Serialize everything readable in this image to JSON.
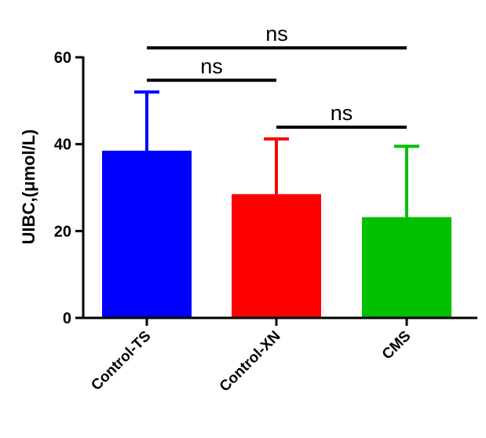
{
  "chart_data": {
    "type": "bar",
    "title": "",
    "xlabel": "",
    "ylabel": "UIBC,(μmol/L)",
    "ylim": [
      0,
      60
    ],
    "yticks": [
      0,
      20,
      40,
      60
    ],
    "grid": false,
    "categories": [
      "Control-TS",
      "Control-XN",
      "CMS"
    ],
    "values": [
      38.5,
      28.5,
      23.2
    ],
    "error_upper": [
      52,
      41.2,
      39.5
    ],
    "colors": [
      "#0000ff",
      "#ff0000",
      "#00c000"
    ],
    "significance": [
      {
        "from": 0,
        "to": 1,
        "label": "ns",
        "level": "low"
      },
      {
        "from": 1,
        "to": 2,
        "label": "ns",
        "level": "low"
      },
      {
        "from": 0,
        "to": 2,
        "label": "ns",
        "level": "high"
      }
    ]
  }
}
